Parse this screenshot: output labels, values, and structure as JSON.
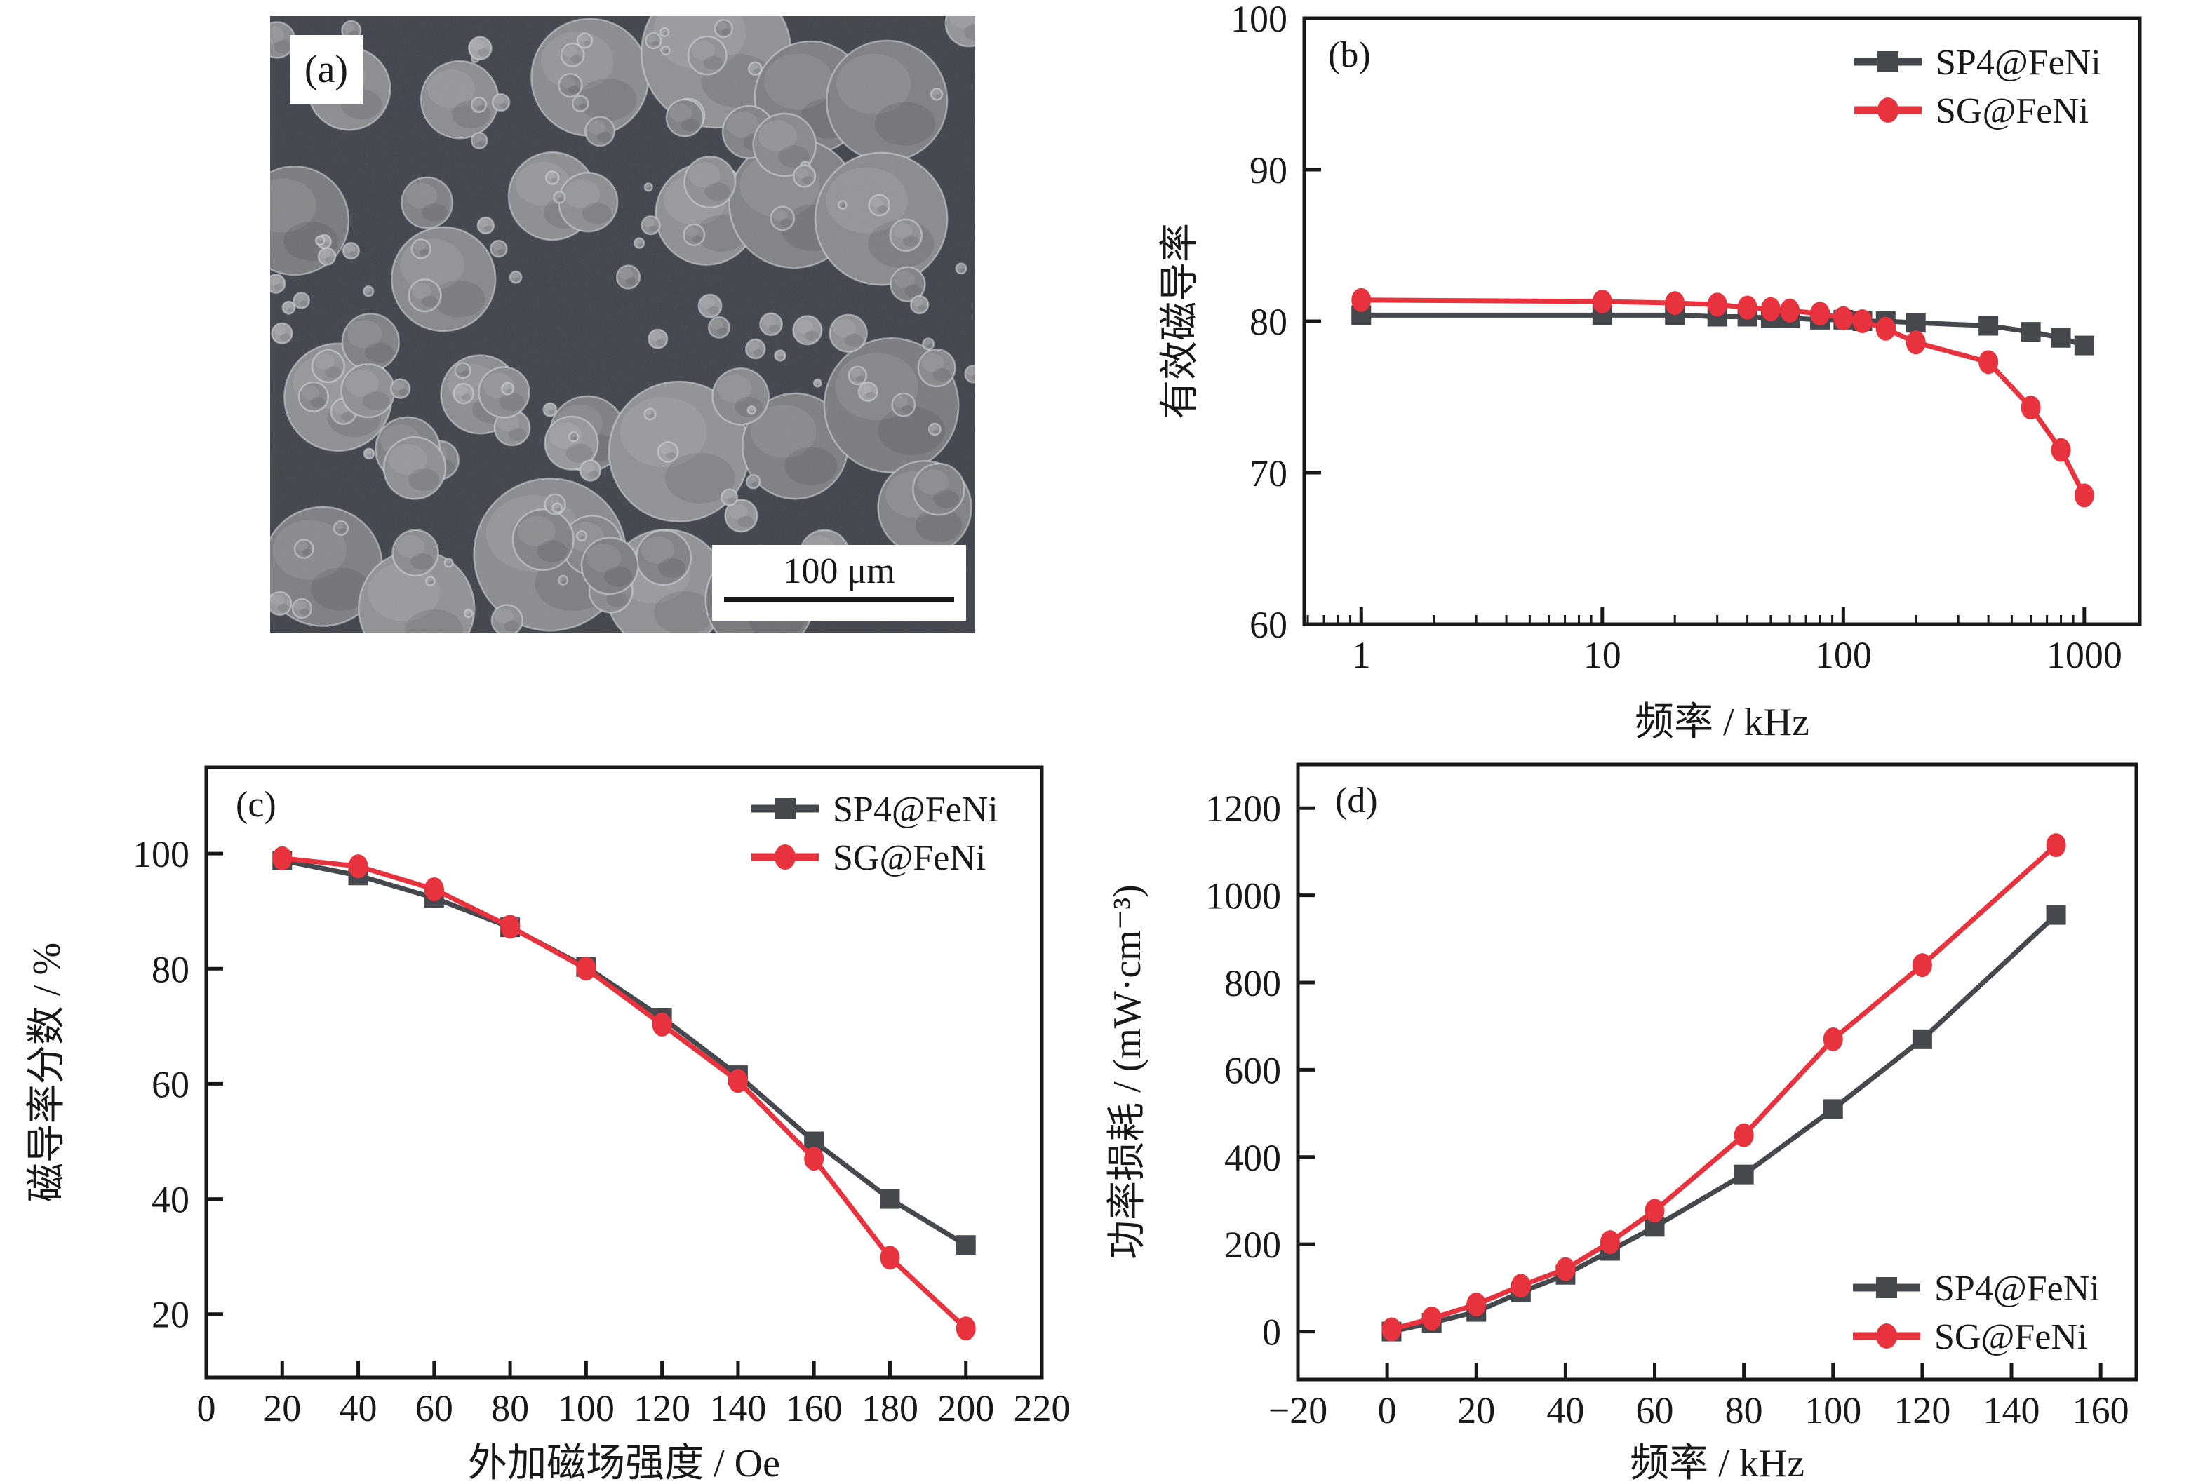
{
  "figure": {
    "panel_a": {
      "label": "(a)",
      "scale_bar_text": "100 μm",
      "description": "SEM image of spherical FeNi-coated powder particles"
    },
    "series_colors": {
      "SP4@FeNi": "#45484d",
      "SG@FeNi": "#e8333f"
    },
    "frame_color": "#17181a",
    "background": "#ffffff",
    "sem_background": "#3e4149"
  },
  "chart_data": [
    {
      "id": "chart-b",
      "panel_label": "(b)",
      "type": "line",
      "xscale": "log",
      "xlabel": "频率 / kHz",
      "ylabel": "有效磁导率",
      "xlim": [
        0.58,
        1700
      ],
      "ylim": [
        60,
        100
      ],
      "grid": false,
      "legend_position": "top-right",
      "xticks": [
        {
          "v": 1,
          "label": "1"
        },
        {
          "v": 10,
          "label": "10"
        },
        {
          "v": 100,
          "label": "100"
        },
        {
          "v": 1000,
          "label": "1000"
        }
      ],
      "yticks": [
        {
          "v": 60,
          "label": "60"
        },
        {
          "v": 70,
          "label": "70"
        },
        {
          "v": 80,
          "label": "80"
        },
        {
          "v": 90,
          "label": "90"
        },
        {
          "v": 100,
          "label": "100"
        }
      ],
      "x": [
        1,
        10,
        20,
        30,
        40,
        50,
        60,
        80,
        100,
        120,
        150,
        200,
        400,
        600,
        800,
        1000
      ],
      "series": [
        {
          "name": "SP4@FeNi",
          "marker": "square",
          "values": [
            80.4,
            80.4,
            80.4,
            80.3,
            80.3,
            80.2,
            80.2,
            80.1,
            80.1,
            80.0,
            80.0,
            79.9,
            79.7,
            79.3,
            78.9,
            78.4
          ]
        },
        {
          "name": "SG@FeNi",
          "marker": "circle",
          "values": [
            81.4,
            81.3,
            81.2,
            81.1,
            80.9,
            80.8,
            80.7,
            80.5,
            80.2,
            80.0,
            79.5,
            78.6,
            77.3,
            74.3,
            71.5,
            68.5
          ]
        }
      ]
    },
    {
      "id": "chart-c",
      "panel_label": "(c)",
      "type": "line",
      "xscale": "linear",
      "xlabel": "外加磁场强度 / Oe",
      "ylabel": "磁导率分数 / %",
      "xlim": [
        0,
        220
      ],
      "ylim": [
        9,
        115
      ],
      "grid": false,
      "legend_position": "top-right",
      "xticks": [
        {
          "v": 0,
          "label": "0"
        },
        {
          "v": 20,
          "label": "20"
        },
        {
          "v": 40,
          "label": "40"
        },
        {
          "v": 60,
          "label": "60"
        },
        {
          "v": 80,
          "label": "80"
        },
        {
          "v": 100,
          "label": "100"
        },
        {
          "v": 120,
          "label": "120"
        },
        {
          "v": 140,
          "label": "140"
        },
        {
          "v": 160,
          "label": "160"
        },
        {
          "v": 180,
          "label": "180"
        },
        {
          "v": 200,
          "label": "200"
        },
        {
          "v": 220,
          "label": "220"
        }
      ],
      "yticks": [
        {
          "v": 20,
          "label": "20"
        },
        {
          "v": 40,
          "label": "40"
        },
        {
          "v": 60,
          "label": "60"
        },
        {
          "v": 80,
          "label": "80"
        },
        {
          "v": 100,
          "label": "100"
        }
      ],
      "x": [
        20,
        40,
        60,
        80,
        100,
        120,
        140,
        160,
        180,
        200
      ],
      "series": [
        {
          "name": "SP4@FeNi",
          "marker": "square",
          "values": [
            98.8,
            96.2,
            92.3,
            87.2,
            80.3,
            71.5,
            61.5,
            50.0,
            40.0,
            32.0
          ]
        },
        {
          "name": "SG@FeNi",
          "marker": "circle",
          "values": [
            99.2,
            97.8,
            93.8,
            87.3,
            80.0,
            70.3,
            60.5,
            47.0,
            29.8,
            17.5
          ]
        }
      ]
    },
    {
      "id": "chart-d",
      "panel_label": "(d)",
      "type": "line",
      "xscale": "linear",
      "xlabel": "频率 / kHz",
      "ylabel": "功率损耗 / (mW·cm⁻³)",
      "xlim": [
        -20,
        168
      ],
      "ylim": [
        -110,
        1300
      ],
      "grid": false,
      "legend_position": "bottom-right",
      "xticks": [
        {
          "v": -20,
          "label": "−20"
        },
        {
          "v": 0,
          "label": "0"
        },
        {
          "v": 20,
          "label": "20"
        },
        {
          "v": 40,
          "label": "40"
        },
        {
          "v": 60,
          "label": "60"
        },
        {
          "v": 80,
          "label": "80"
        },
        {
          "v": 100,
          "label": "100"
        },
        {
          "v": 120,
          "label": "120"
        },
        {
          "v": 140,
          "label": "140"
        },
        {
          "v": 160,
          "label": "160"
        }
      ],
      "yticks": [
        {
          "v": 0,
          "label": "0"
        },
        {
          "v": 200,
          "label": "200"
        },
        {
          "v": 400,
          "label": "400"
        },
        {
          "v": 600,
          "label": "600"
        },
        {
          "v": 800,
          "label": "800"
        },
        {
          "v": 1000,
          "label": "1000"
        },
        {
          "v": 1200,
          "label": "1200"
        }
      ],
      "x": [
        1,
        10,
        20,
        30,
        40,
        50,
        60,
        80,
        100,
        120,
        150
      ],
      "series": [
        {
          "name": "SP4@FeNi",
          "marker": "square",
          "values": [
            0,
            20,
            45,
            90,
            130,
            185,
            240,
            360,
            510,
            670,
            955
          ]
        },
        {
          "name": "SG@FeNi",
          "marker": "circle",
          "values": [
            5,
            30,
            62,
            105,
            143,
            205,
            277,
            450,
            670,
            840,
            1115
          ]
        }
      ]
    }
  ]
}
